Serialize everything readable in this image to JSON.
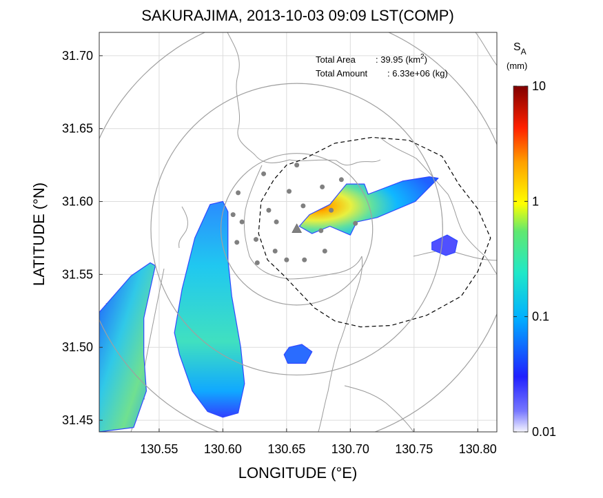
{
  "chart_data": {
    "type": "heatmap",
    "title": "SAKURAJIMA, 2013-10-03 09:09 LST(COMP)",
    "xlabel": "LONGITUDE (°E)",
    "ylabel": "LATITUDE (°N)",
    "xlim": [
      130.503,
      130.815
    ],
    "ylim": [
      31.442,
      31.716
    ],
    "xticks": [
      130.55,
      130.6,
      130.65,
      130.7,
      130.75,
      130.8
    ],
    "xtick_labels": [
      "130.55",
      "130.60",
      "130.65",
      "130.70",
      "130.75",
      "130.80"
    ],
    "yticks": [
      31.45,
      31.5,
      31.55,
      31.6,
      31.65,
      31.7
    ],
    "ytick_labels": [
      "31.45",
      "31.50",
      "31.55",
      "31.60",
      "31.65",
      "31.70"
    ],
    "grid": true,
    "annotations": {
      "total_area_label": "Total Area",
      "total_area_value": ": 39.95 (km",
      "total_area_sup": "2",
      "total_area_close": ")",
      "total_amount_label": "Total Amount",
      "total_amount_value": ": 6.33e+06 (kg)"
    },
    "colorbar": {
      "title_main": "S",
      "title_sub": "A",
      "unit": "(mm)",
      "scale": "log",
      "range": [
        0.01,
        10
      ],
      "ticks": [
        0.01,
        0.1,
        1,
        10
      ],
      "tick_labels": [
        "0.01",
        "0.1",
        "1",
        "10"
      ]
    },
    "vent": {
      "lon": 130.658,
      "lat": 31.581
    },
    "range_rings": {
      "center": {
        "lon": 130.658,
        "lat": 31.581
      },
      "radii_deg_lat": [
        0.052,
        0.1,
        0.149
      ]
    },
    "stations": [
      {
        "lon": 130.632,
        "lat": 31.619
      },
      {
        "lon": 130.658,
        "lat": 31.625
      },
      {
        "lon": 130.612,
        "lat": 31.606
      },
      {
        "lon": 130.652,
        "lat": 31.607
      },
      {
        "lon": 130.678,
        "lat": 31.61
      },
      {
        "lon": 130.615,
        "lat": 31.586
      },
      {
        "lon": 130.636,
        "lat": 31.594
      },
      {
        "lon": 130.626,
        "lat": 31.574
      },
      {
        "lon": 130.642,
        "lat": 31.586
      },
      {
        "lon": 130.663,
        "lat": 31.597
      },
      {
        "lon": 130.677,
        "lat": 31.58
      },
      {
        "lon": 130.608,
        "lat": 31.591
      },
      {
        "lon": 130.611,
        "lat": 31.572
      },
      {
        "lon": 130.627,
        "lat": 31.558
      },
      {
        "lon": 130.641,
        "lat": 31.566
      },
      {
        "lon": 130.65,
        "lat": 31.56
      },
      {
        "lon": 130.664,
        "lat": 31.56
      },
      {
        "lon": 130.68,
        "lat": 31.566
      },
      {
        "lon": 130.685,
        "lat": 31.594
      },
      {
        "lon": 130.693,
        "lat": 31.615
      },
      {
        "lon": 130.704,
        "lat": 31.585
      }
    ],
    "ash_regions": [
      {
        "name": "plume-core",
        "value": 0.5,
        "polygon": [
          [
            130.66,
            31.583
          ],
          [
            130.668,
            31.591
          ],
          [
            130.684,
            31.598
          ],
          [
            130.697,
            31.612
          ],
          [
            130.711,
            31.612
          ],
          [
            130.714,
            31.605
          ],
          [
            130.741,
            31.614
          ],
          [
            130.762,
            31.617
          ],
          [
            130.769,
            31.616
          ],
          [
            130.751,
            31.6
          ],
          [
            130.721,
            31.589
          ],
          [
            130.705,
            31.586
          ],
          [
            130.7,
            31.577
          ],
          [
            130.684,
            31.583
          ],
          [
            130.67,
            31.578
          ]
        ]
      },
      {
        "name": "south-west-band",
        "value": 0.07,
        "polygon": [
          [
            130.59,
            31.598
          ],
          [
            130.6,
            31.6
          ],
          [
            130.604,
            31.593
          ],
          [
            130.604,
            31.56
          ],
          [
            130.607,
            31.535
          ],
          [
            130.614,
            31.5
          ],
          [
            130.617,
            31.475
          ],
          [
            130.612,
            31.455
          ],
          [
            130.6,
            31.452
          ],
          [
            130.588,
            31.456
          ],
          [
            130.576,
            31.47
          ],
          [
            130.566,
            31.495
          ],
          [
            130.562,
            31.51
          ],
          [
            130.568,
            31.54
          ],
          [
            130.578,
            31.575
          ]
        ]
      },
      {
        "name": "south-west-corner",
        "value": 0.07,
        "polygon": [
          [
            130.503,
            31.524
          ],
          [
            130.528,
            31.549
          ],
          [
            130.543,
            31.558
          ],
          [
            130.547,
            31.556
          ],
          [
            130.538,
            31.52
          ],
          [
            130.538,
            31.495
          ],
          [
            130.54,
            31.47
          ],
          [
            130.53,
            31.445
          ],
          [
            130.503,
            31.442
          ]
        ]
      },
      {
        "name": "east-patch",
        "value": 0.025,
        "polygon": [
          [
            130.764,
            31.572
          ],
          [
            130.776,
            31.577
          ],
          [
            130.784,
            31.573
          ],
          [
            130.782,
            31.565
          ],
          [
            130.775,
            31.563
          ],
          [
            130.764,
            31.567
          ]
        ]
      },
      {
        "name": "south-patch",
        "value": 0.04,
        "polygon": [
          [
            130.652,
            31.5
          ],
          [
            130.662,
            31.502
          ],
          [
            130.67,
            31.497
          ],
          [
            130.665,
            31.489
          ],
          [
            130.651,
            31.489
          ],
          [
            130.648,
            31.495
          ]
        ]
      }
    ],
    "dashed_boundary": [
      [
        130.663,
        31.629
      ],
      [
        130.688,
        31.64
      ],
      [
        130.717,
        31.644
      ],
      [
        130.746,
        31.642
      ],
      [
        130.772,
        31.631
      ],
      [
        130.785,
        31.612
      ],
      [
        130.8,
        31.595
      ],
      [
        130.81,
        31.575
      ],
      [
        130.8,
        31.552
      ],
      [
        130.787,
        31.535
      ],
      [
        130.76,
        31.522
      ],
      [
        130.732,
        31.515
      ],
      [
        130.708,
        31.514
      ],
      [
        130.688,
        31.518
      ],
      [
        130.672,
        31.527
      ],
      [
        130.66,
        31.538
      ],
      [
        130.647,
        31.55
      ],
      [
        130.635,
        31.56
      ],
      [
        130.628,
        31.578
      ],
      [
        130.63,
        31.6
      ],
      [
        130.64,
        31.615
      ],
      [
        130.65,
        31.625
      ]
    ]
  }
}
